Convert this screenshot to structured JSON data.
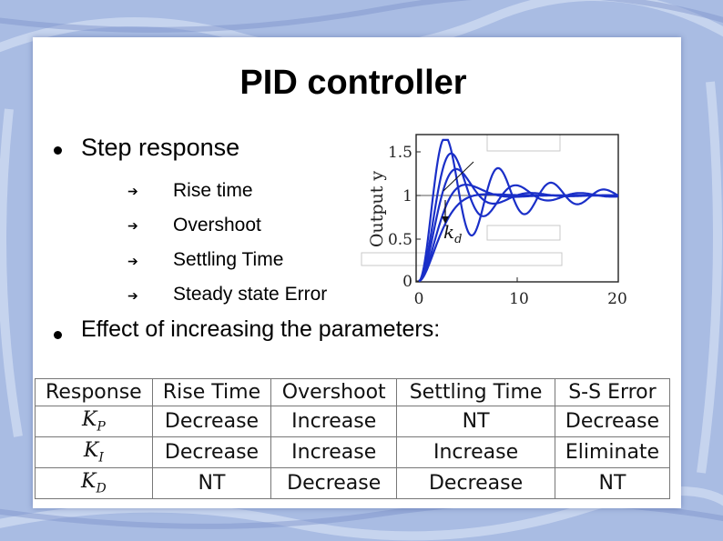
{
  "slide": {
    "title": "PID controller",
    "bullet1": "Step response",
    "sub_items": [
      "Rise time",
      "Overshoot",
      "Settling Time",
      "Steady state Error"
    ],
    "arrow_glyph": "➔",
    "bullet2": "Effect of increasing the parameters:"
  },
  "plot": {
    "ylabel": "Output y",
    "y_ticks": [
      "1.5",
      "1",
      "0.5",
      "0"
    ],
    "x_ticks": [
      "0",
      "10",
      "20"
    ],
    "annotation": "k",
    "annotation_sub": "d",
    "curve_color": "#1a2fc8"
  },
  "table": {
    "header": [
      "Response",
      "Rise Time",
      "Overshoot",
      "Settling Time",
      "S-S Error"
    ],
    "rows": [
      {
        "param": "K",
        "sub": "P",
        "cells": [
          "Decrease",
          "Increase",
          "NT",
          "Decrease"
        ]
      },
      {
        "param": "K",
        "sub": "I",
        "cells": [
          "Decrease",
          "Increase",
          "Increase",
          "Eliminate"
        ]
      },
      {
        "param": "K",
        "sub": "D",
        "cells": [
          "NT",
          "Decrease",
          "Decrease",
          "NT"
        ]
      }
    ]
  }
}
